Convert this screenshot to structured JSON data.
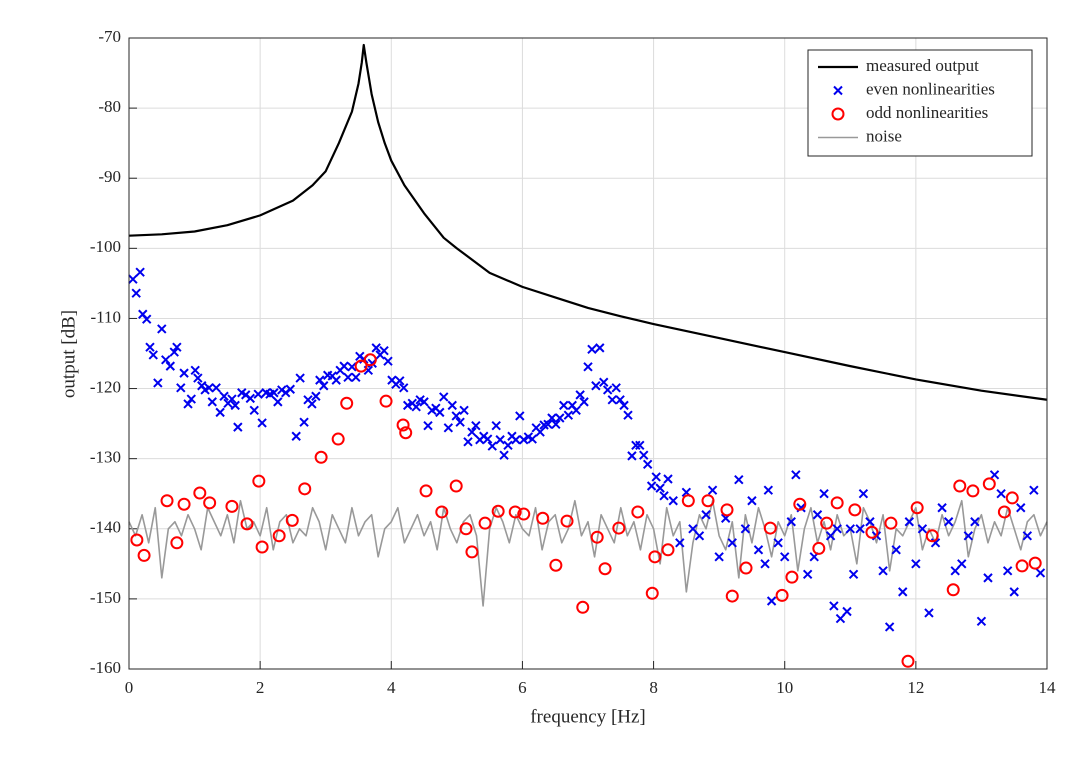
{
  "chart_data": {
    "type": "line",
    "xlabel": "frequency [Hz]",
    "ylabel": "output [dB]",
    "xlim": [
      0,
      14
    ],
    "xticks": [
      0,
      2,
      4,
      6,
      8,
      10,
      12,
      14
    ],
    "ylim": [
      -160,
      -70
    ],
    "yticks": [
      -160,
      -150,
      -140,
      -130,
      -120,
      -110,
      -100,
      -90,
      -80,
      -70
    ],
    "grid": true,
    "legend": "upper right",
    "series": [
      {
        "name": "measured output",
        "color": "#000000",
        "x": [
          0,
          0.5,
          1,
          1.5,
          2,
          2.5,
          2.8,
          3,
          3.2,
          3.4,
          3.5,
          3.55,
          3.58,
          3.62,
          3.7,
          3.8,
          3.9,
          4,
          4.2,
          4.5,
          4.8,
          5,
          5.5,
          6,
          6.5,
          7,
          7.5,
          8,
          9,
          10,
          11,
          12,
          13,
          14
        ],
        "values": [
          -98.2,
          -98,
          -97.6,
          -96.7,
          -95.3,
          -93.2,
          -91,
          -89,
          -85,
          -80.5,
          -76.5,
          -73.5,
          -71,
          -73.5,
          -78,
          -82,
          -85,
          -87.5,
          -91,
          -95,
          -98.5,
          -100,
          -103.5,
          -105.5,
          -107,
          -108.5,
          -109.7,
          -110.8,
          -112.8,
          -114.8,
          -116.8,
          -118.7,
          -120.3,
          -121.6
        ]
      },
      {
        "name": "even nonlinearities",
        "color": "#0000ee",
        "marker": "x",
        "x": [
          0.06,
          0.11,
          0.17,
          0.21,
          0.27,
          0.32,
          0.37,
          0.44,
          0.5,
          0.56,
          0.63,
          0.69,
          0.73,
          0.79,
          0.84,
          0.9,
          0.95,
          1.01,
          1.05,
          1.11,
          1.16,
          1.22,
          1.27,
          1.33,
          1.39,
          1.45,
          1.51,
          1.57,
          1.62,
          1.66,
          1.72,
          1.78,
          1.85,
          1.91,
          1.97,
          2.03,
          2.09,
          2.15,
          2.21,
          2.27,
          2.33,
          2.39,
          2.46,
          2.55,
          2.61,
          2.67,
          2.73,
          2.79,
          2.85,
          2.91,
          2.97,
          3.03,
          3.1,
          3.16,
          3.22,
          3.28,
          3.34,
          3.4,
          3.46,
          3.52,
          3.58,
          3.65,
          3.71,
          3.77,
          3.83,
          3.89,
          3.95,
          4.01,
          4.07,
          4.13,
          4.19,
          4.25,
          4.32,
          4.38,
          4.44,
          4.5,
          4.56,
          4.62,
          4.68,
          4.74,
          4.8,
          4.87,
          4.93,
          4.99,
          5.05,
          5.11,
          5.17,
          5.23,
          5.29,
          5.35,
          5.41,
          5.47,
          5.54,
          5.6,
          5.66,
          5.72,
          5.78,
          5.84,
          5.9,
          5.96,
          6.02,
          6.09,
          6.15,
          6.21,
          6.27,
          6.33,
          6.39,
          6.45,
          6.51,
          6.57,
          6.63,
          6.7,
          6.76,
          6.82,
          6.88,
          6.94,
          7.0,
          7.06,
          7.12,
          7.18,
          7.24,
          7.3,
          7.37,
          7.43,
          7.49,
          7.55,
          7.61,
          7.67,
          7.73,
          7.79,
          7.85,
          7.91,
          7.97,
          8.04,
          8.1,
          8.16,
          8.22,
          8.3,
          8.4,
          8.5,
          8.6,
          8.7,
          8.8,
          8.9,
          9.0,
          9.1,
          9.2,
          9.3,
          9.4,
          9.5,
          9.6,
          9.7,
          9.75,
          9.8,
          9.9,
          10.0,
          10.1,
          10.17,
          10.25,
          10.35,
          10.45,
          10.5,
          10.6,
          10.7,
          10.75,
          10.8,
          10.85,
          10.95,
          11.0,
          11.05,
          11.15,
          11.2,
          11.3,
          11.4,
          11.5,
          11.6,
          11.7,
          11.8,
          11.9,
          12.0,
          12.1,
          12.2,
          12.3,
          12.4,
          12.5,
          12.6,
          12.7,
          12.8,
          12.9,
          13.0,
          13.1,
          13.2,
          13.3,
          13.4,
          13.5,
          13.6,
          13.7,
          13.8,
          13.9
        ],
        "values": [
          -104.4,
          -106.4,
          -103.4,
          -109.4,
          -110.1,
          -114.1,
          -115.2,
          -119.2,
          -111.5,
          -115.9,
          -116.8,
          -114.8,
          -114.1,
          -119.9,
          -117.8,
          -122.2,
          -121.5,
          -117.4,
          -118.5,
          -119.6,
          -120.2,
          -119.9,
          -121.9,
          -119.9,
          -123.4,
          -121.1,
          -122.1,
          -121.5,
          -122.4,
          -125.5,
          -120.6,
          -120.9,
          -121.4,
          -123.1,
          -120.8,
          -124.9,
          -120.6,
          -120.8,
          -120.6,
          -121.9,
          -120.2,
          -120.6,
          -120.1,
          -126.8,
          -118.5,
          -124.8,
          -121.6,
          -122.2,
          -121.1,
          -118.8,
          -119.6,
          -118.1,
          -118.2,
          -118.8,
          -117.4,
          -116.8,
          -118.4,
          -116.9,
          -118.4,
          -115.4,
          -115.8,
          -117.4,
          -116.4,
          -114.2,
          -115.2,
          -114.6,
          -116.1,
          -118.8,
          -119.4,
          -118.9,
          -119.9,
          -122.4,
          -122.1,
          -122.6,
          -121.6,
          -121.9,
          -125.3,
          -123.1,
          -122.8,
          -123.4,
          -121.2,
          -125.6,
          -122.4,
          -123.9,
          -124.8,
          -123.1,
          -127.6,
          -126.2,
          -125.3,
          -127.3,
          -126.8,
          -127.2,
          -128.2,
          -125.3,
          -127.3,
          -129.5,
          -128.1,
          -126.8,
          -127.3,
          -123.9,
          -127.3,
          -126.9,
          -127.2,
          -125.6,
          -126.2,
          -125.2,
          -125.1,
          -124.2,
          -125.1,
          -124.2,
          -122.4,
          -123.8,
          -122.4,
          -123.1,
          -120.9,
          -121.9,
          -116.9,
          -114.4,
          -119.6,
          -114.2,
          -119.1,
          -120.2,
          -121.6,
          -119.9,
          -121.6,
          -122.4,
          -123.8,
          -129.6,
          -128.1,
          -128.1,
          -129.5,
          -130.8,
          -133.9,
          -132.6,
          -134.2,
          -135.3,
          -132.9,
          -136,
          -142,
          -134.8,
          -140,
          -141,
          -138,
          -134.5,
          -144,
          -138.5,
          -142,
          -133,
          -140,
          -136,
          -143,
          -145,
          -134.5,
          -150.3,
          -142,
          -144,
          -139,
          -132.3,
          -137,
          -146.5,
          -144,
          -138,
          -135,
          -141,
          -151,
          -140,
          -152.8,
          -151.8,
          -140,
          -146.5,
          -140,
          -135,
          -139,
          -141,
          -146,
          -154,
          -143,
          -149,
          -139,
          -145,
          -140,
          -152,
          -142,
          -137,
          -139,
          -146,
          -145,
          -141,
          -139,
          -153.2,
          -147,
          -132.3,
          -135,
          -146,
          -149,
          -137,
          -141,
          -134.5,
          -146.3
        ]
      },
      {
        "name": "odd nonlinearities",
        "color": "#ff0000",
        "marker": "o",
        "x": [
          0.12,
          0.23,
          0.58,
          0.73,
          0.84,
          1.08,
          1.23,
          1.57,
          1.8,
          1.98,
          2.03,
          2.29,
          2.49,
          2.68,
          2.93,
          3.19,
          3.32,
          3.54,
          3.68,
          3.92,
          4.18,
          4.22,
          4.53,
          4.77,
          4.99,
          5.14,
          5.23,
          5.43,
          5.63,
          5.89,
          6.02,
          6.31,
          6.51,
          6.68,
          6.92,
          7.14,
          7.26,
          7.47,
          7.76,
          7.98,
          8.02,
          8.22,
          8.53,
          8.83,
          9.12,
          9.2,
          9.41,
          9.78,
          9.96,
          10.11,
          10.23,
          10.52,
          10.64,
          10.8,
          11.07,
          11.33,
          11.62,
          11.88,
          12.02,
          12.25,
          12.57,
          12.67,
          12.87,
          13.12,
          13.35,
          13.47,
          13.62,
          13.82
        ],
        "values": [
          -141.6,
          -143.8,
          -136.0,
          -142,
          -136.5,
          -134.9,
          -136.3,
          -136.8,
          -139.3,
          -133.2,
          -142.6,
          -141,
          -138.8,
          -134.3,
          -129.8,
          -127.2,
          -122.1,
          -116.8,
          -115.9,
          -121.8,
          -125.2,
          -126.3,
          -134.6,
          -137.6,
          -133.9,
          -140,
          -143.3,
          -139.2,
          -137.5,
          -137.6,
          -137.9,
          -138.5,
          -145.2,
          -138.9,
          -151.2,
          -141.2,
          -145.7,
          -139.9,
          -137.6,
          -149.2,
          -144,
          -143,
          -136.0,
          -136.0,
          -137.3,
          -149.6,
          -145.6,
          -139.9,
          -149.5,
          -146.9,
          -136.5,
          -142.8,
          -139.2,
          -136.3,
          -137.3,
          -140.5,
          -139.2,
          -158.9,
          -137,
          -141,
          -148.7,
          -133.9,
          -134.6,
          -133.6,
          -137.6,
          -135.6,
          -145.3,
          -144.9
        ]
      },
      {
        "name": "noise",
        "color": "#999999",
        "x": [
          0,
          0.1,
          0.2,
          0.3,
          0.4,
          0.5,
          0.6,
          0.7,
          0.8,
          0.9,
          1,
          1.1,
          1.2,
          1.3,
          1.4,
          1.5,
          1.6,
          1.7,
          1.8,
          1.9,
          2,
          2.1,
          2.2,
          2.3,
          2.4,
          2.5,
          2.6,
          2.7,
          2.8,
          2.9,
          3,
          3.1,
          3.2,
          3.3,
          3.4,
          3.5,
          3.6,
          3.7,
          3.8,
          3.9,
          4,
          4.1,
          4.2,
          4.3,
          4.4,
          4.5,
          4.6,
          4.7,
          4.8,
          4.9,
          5,
          5.1,
          5.2,
          5.3,
          5.4,
          5.5,
          5.6,
          5.7,
          5.8,
          5.9,
          6,
          6.1,
          6.2,
          6.3,
          6.4,
          6.5,
          6.6,
          6.7,
          6.8,
          6.9,
          7,
          7.1,
          7.2,
          7.3,
          7.4,
          7.5,
          7.6,
          7.7,
          7.8,
          7.9,
          8,
          8.1,
          8.2,
          8.3,
          8.4,
          8.5,
          8.6,
          8.7,
          8.8,
          8.9,
          9,
          9.1,
          9.2,
          9.3,
          9.4,
          9.5,
          9.6,
          9.7,
          9.8,
          9.9,
          10,
          10.1,
          10.2,
          10.3,
          10.4,
          10.5,
          10.6,
          10.7,
          10.8,
          10.9,
          11,
          11.1,
          11.2,
          11.3,
          11.4,
          11.5,
          11.6,
          11.7,
          11.8,
          11.9,
          12,
          12.1,
          12.2,
          12.3,
          12.4,
          12.5,
          12.6,
          12.7,
          12.8,
          12.9,
          13,
          13.1,
          13.2,
          13.3,
          13.4,
          13.5,
          13.6,
          13.7,
          13.8,
          13.9,
          14
        ],
        "values": [
          -139,
          -141,
          -138,
          -142,
          -137,
          -147,
          -140,
          -139,
          -141,
          -138,
          -140,
          -143,
          -137,
          -139,
          -141,
          -138,
          -142,
          -136,
          -140,
          -139,
          -141,
          -137,
          -143,
          -139,
          -138,
          -142,
          -140,
          -141,
          -137,
          -139,
          -143,
          -138,
          -140,
          -142,
          -137,
          -141,
          -139,
          -138,
          -144,
          -140,
          -139,
          -137,
          -142,
          -140,
          -138,
          -141,
          -139,
          -143,
          -137,
          -140,
          -142,
          -139,
          -138,
          -141,
          -151,
          -140,
          -137,
          -139,
          -142,
          -138,
          -140,
          -141,
          -137,
          -143,
          -139,
          -138,
          -142,
          -140,
          -136,
          -141,
          -139,
          -144,
          -138,
          -140,
          -142,
          -137,
          -141,
          -139,
          -143,
          -138,
          -140,
          -145,
          -137,
          -141,
          -139,
          -149,
          -142,
          -138,
          -140,
          -136,
          -141,
          -143,
          -139,
          -147,
          -138,
          -142,
          -137,
          -140,
          -144,
          -139,
          -141,
          -138,
          -146,
          -140,
          -137,
          -142,
          -139,
          -143,
          -138,
          -141,
          -140,
          -145,
          -137,
          -139,
          -142,
          -138,
          -146,
          -140,
          -141,
          -139,
          -137,
          -143,
          -140,
          -142,
          -138,
          -141,
          -139,
          -136,
          -144,
          -140,
          -138,
          -142,
          -139,
          -141,
          -137,
          -140,
          -143,
          -139,
          -138,
          -141,
          -139
        ]
      }
    ]
  }
}
